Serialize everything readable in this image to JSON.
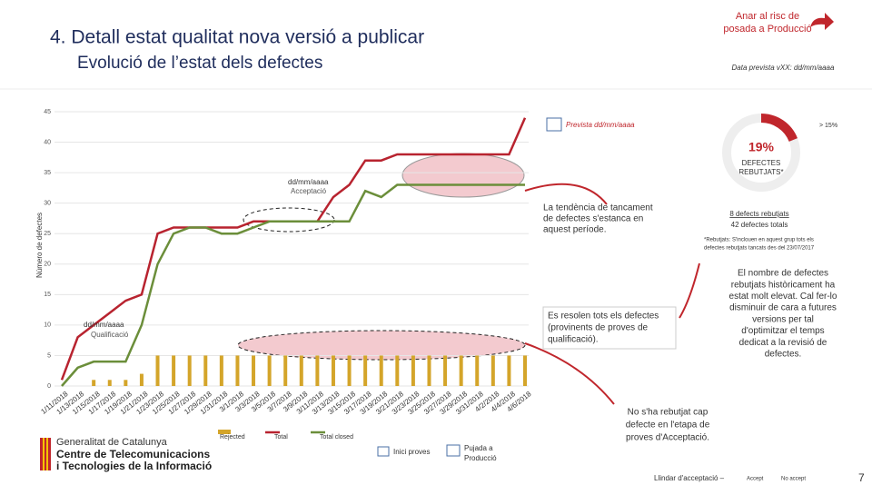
{
  "header": {
    "title": "4. Detall estat qualitat nova versió a publicar",
    "subtitle": "Evolució de l’estat dels defectes",
    "risk_link": [
      "Anar al risc de",
      "posada a Producció"
    ],
    "planned_date": "Data prevista vXX: dd/mm/aaaa"
  },
  "chart_data": {
    "type": "line",
    "y_label": "Número de defectes",
    "categories": [
      "1/11/2018",
      "1/13/2018",
      "1/15/2018",
      "1/17/2018",
      "1/19/2018",
      "1/21/2018",
      "1/23/2018",
      "1/25/2018",
      "1/27/2018",
      "1/29/2018",
      "1/31/2018",
      "3/1/2018",
      "3/3/2018",
      "3/5/2018",
      "3/7/2018",
      "3/9/2018",
      "3/11/2018",
      "3/13/2018",
      "3/15/2018",
      "3/17/2018",
      "3/19/2018",
      "3/21/2018",
      "3/23/2018",
      "3/25/2018",
      "3/27/2018",
      "3/29/2018",
      "3/31/2018",
      "4/2/2018",
      "4/4/2018",
      "4/6/2018"
    ],
    "series": [
      {
        "name": "Rejected",
        "type": "bar",
        "color": "#d4a52a",
        "values": [
          0,
          0,
          1,
          1,
          1,
          2,
          5,
          5,
          5,
          5,
          5,
          5,
          5,
          5,
          5,
          5,
          5,
          5,
          5,
          5,
          5,
          5,
          5,
          5,
          5,
          5,
          5,
          5,
          5,
          5
        ]
      },
      {
        "name": "Total",
        "type": "line",
        "color": "#b8232f",
        "values": [
          1,
          8,
          10,
          12,
          14,
          15,
          25,
          26,
          26,
          26,
          26,
          26,
          27,
          27,
          27,
          27,
          27,
          31,
          33,
          37,
          37,
          38,
          38,
          38,
          38,
          38,
          38,
          38,
          38,
          44
        ]
      },
      {
        "name": "Total closed",
        "type": "line",
        "color": "#6b8e3a",
        "values": [
          0,
          3,
          4,
          4,
          4,
          10,
          20,
          25,
          26,
          26,
          25,
          25,
          26,
          27,
          27,
          27,
          27,
          27,
          27,
          32,
          31,
          33,
          33,
          33,
          33,
          33,
          33,
          33,
          33,
          33
        ]
      }
    ],
    "ylim": [
      0,
      45
    ],
    "yticks": [
      0,
      5,
      10,
      15,
      20,
      25,
      30,
      35,
      40,
      45
    ],
    "grid": true,
    "annotations": {
      "forecast": "Prevista dd/mm/aaaa",
      "acceptance": [
        "dd/mm/aaaa",
        "Acceptació"
      ],
      "qualification": [
        "dd/mm/aaaa",
        "Qualificació"
      ]
    }
  },
  "callouts": {
    "stagnation": [
      "La tendència de tancament",
      "de defectes s'estanca en",
      "aquest període."
    ],
    "resolved": [
      "Es resolen tots els defectes",
      "(provinents de proves de",
      "qualificació)."
    ]
  },
  "donut": {
    "value": 19,
    "value_label": "19%",
    "label": [
      "DEFECTES",
      "REBUTJATS*"
    ],
    "threshold": "> 15%",
    "rejected": "8 defects rebutjats",
    "total": "42 defectes totals",
    "footnote": [
      "*Rebutjats: S'inclouen en aquest grup tots els",
      "defectes rebutjats tancats des del 23/07/2017"
    ]
  },
  "comment": [
    "El nombre de defectes",
    "rebutjats històricament ha",
    "estat molt elevat. Cal fer-lo",
    "disminuir de cara a futures",
    "versions per tal",
    "d'optimitzar el temps",
    "dedicat a la revisió de",
    "defectes."
  ],
  "acceptance_note": [
    "No s'ha rebutjat cap",
    "defecte en l'etapa de",
    "proves d'Acceptació."
  ],
  "legend_icons": {
    "start": "Inici proves",
    "release": [
      "Pujada a",
      "Producció"
    ]
  },
  "threshold_legend": {
    "label": "Llindar d'acceptació –",
    "accept": "Accept",
    "no_accept": "No accept"
  },
  "logo": {
    "line1": "Generalitat de Catalunya",
    "line2": "Centre de Telecomunicacions",
    "line3": "i Tecnologies de la Informació"
  },
  "page": "7"
}
